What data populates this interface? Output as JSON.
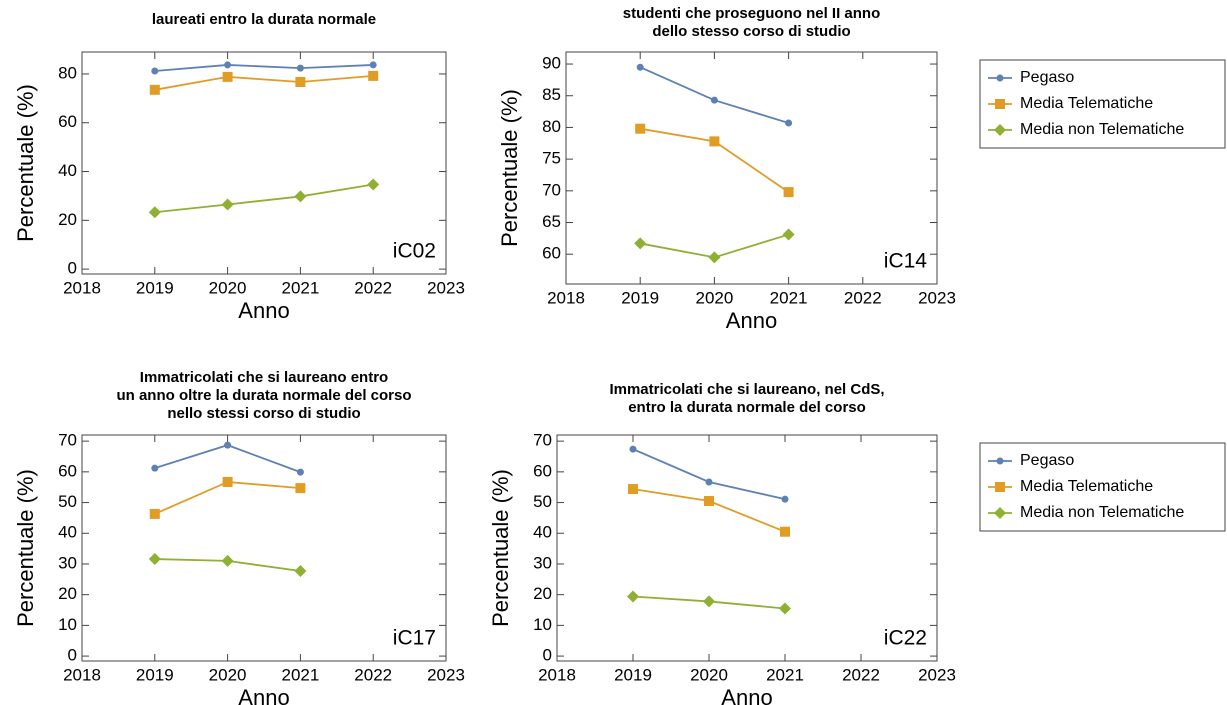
{
  "chart_data": [
    {
      "type": "line",
      "title": [
        "laureati entro la durata normale"
      ],
      "xlabel": "Anno",
      "ylabel": "Percentuale (%)",
      "annotation": "iC02",
      "xlim": [
        2018,
        2023
      ],
      "xticks": [
        2018,
        2019,
        2020,
        2021,
        2022,
        2023
      ],
      "ylim": [
        -2,
        89
      ],
      "yticks": [
        0,
        20,
        40,
        60,
        80
      ],
      "x": [
        2019,
        2020,
        2021,
        2022
      ],
      "series": [
        {
          "color": "#5e81b5",
          "marker": "circle",
          "values": [
            81.2,
            83.7,
            82.4,
            83.7
          ]
        },
        {
          "color": "#e19c24",
          "marker": "square",
          "values": [
            73.5,
            78.8,
            76.7,
            79.2
          ]
        },
        {
          "color": "#8fb032",
          "marker": "diamond",
          "values": [
            23.3,
            26.5,
            29.8,
            34.7
          ]
        }
      ]
    },
    {
      "type": "line",
      "title": [
        "studenti che proseguono nel II anno",
        "dello stesso corso di studio"
      ],
      "xlabel": "Anno",
      "ylabel": "Percentuale (%)",
      "annotation": "iC14",
      "xlim": [
        2018,
        2023
      ],
      "xticks": [
        2018,
        2019,
        2020,
        2021,
        2022,
        2023
      ],
      "ylim": [
        55.3,
        91.9
      ],
      "yticks": [
        60,
        65,
        70,
        75,
        80,
        85,
        90
      ],
      "x": [
        2019,
        2020,
        2021
      ],
      "legend": "right",
      "series": [
        {
          "name": "Pegaso",
          "color": "#5e81b5",
          "marker": "circle",
          "values": [
            89.5,
            84.3,
            80.7
          ]
        },
        {
          "name": "Media Telematiche",
          "color": "#e19c24",
          "marker": "square",
          "values": [
            79.8,
            77.8,
            69.8
          ]
        },
        {
          "name": "Media non Telematiche",
          "color": "#8fb032",
          "marker": "diamond",
          "values": [
            61.7,
            59.5,
            63.1
          ]
        }
      ]
    },
    {
      "type": "line",
      "title": [
        "Immatricolati che si laureano entro",
        "un anno oltre la durata normale del corso",
        "nello stessi corso di studio"
      ],
      "xlabel": "Anno",
      "ylabel": "Percentuale (%)",
      "annotation": "iC17",
      "xlim": [
        2018,
        2023
      ],
      "xticks": [
        2018,
        2019,
        2020,
        2021,
        2022,
        2023
      ],
      "ylim": [
        -1.6,
        72
      ],
      "yticks": [
        0,
        10,
        20,
        30,
        40,
        50,
        60,
        70
      ],
      "x": [
        2019,
        2020,
        2021
      ],
      "series": [
        {
          "color": "#5e81b5",
          "marker": "circle",
          "values": [
            61.2,
            68.7,
            59.9
          ]
        },
        {
          "color": "#e19c24",
          "marker": "square",
          "values": [
            46.3,
            56.7,
            54.7
          ]
        },
        {
          "color": "#8fb032",
          "marker": "diamond",
          "values": [
            31.6,
            31,
            27.7
          ]
        }
      ]
    },
    {
      "type": "line",
      "title": [
        "Immatricolati che si laureano, nel CdS,",
        "entro la durata normale del corso"
      ],
      "xlabel": "Anno",
      "ylabel": "Percentuale (%)",
      "annotation": "iC22",
      "xlim": [
        2018,
        2023
      ],
      "xticks": [
        2018,
        2019,
        2020,
        2021,
        2022,
        2023
      ],
      "ylim": [
        -1.6,
        72
      ],
      "yticks": [
        0,
        10,
        20,
        30,
        40,
        50,
        60,
        70
      ],
      "x": [
        2019,
        2020,
        2021
      ],
      "legend": "right",
      "series": [
        {
          "name": "Pegaso",
          "color": "#5e81b5",
          "marker": "circle",
          "values": [
            67.4,
            56.7,
            51.1
          ]
        },
        {
          "name": "Media Telematiche",
          "color": "#e19c24",
          "marker": "square",
          "values": [
            54.4,
            50.5,
            40.5
          ]
        },
        {
          "name": "Media non Telematiche",
          "color": "#8fb032",
          "marker": "diamond",
          "values": [
            19.4,
            17.8,
            15.5
          ]
        }
      ]
    }
  ]
}
